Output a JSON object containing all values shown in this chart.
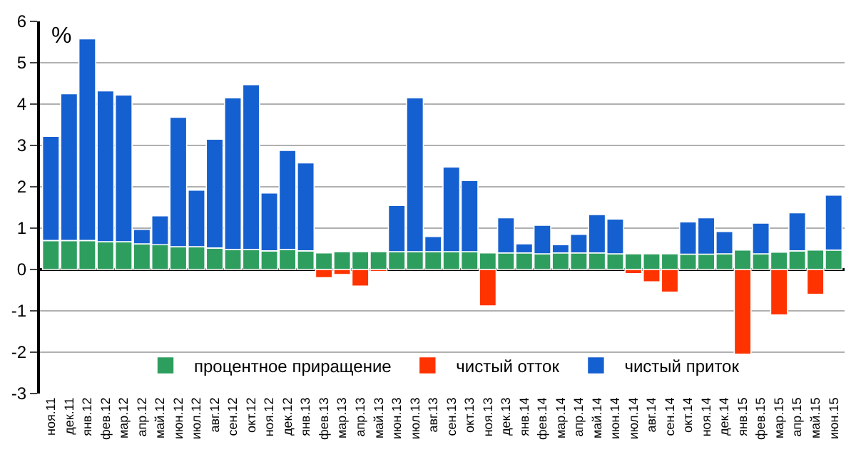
{
  "chart_data": {
    "type": "bar",
    "stacked": true,
    "ylabel": "%",
    "categories": [
      "ноя.11",
      "дек.11",
      "янв.12",
      "фев.12",
      "мар.12",
      "апр.12",
      "май.12",
      "июн.12",
      "июл.12",
      "авг.12",
      "сен.12",
      "окт.12",
      "ноя.12",
      "дек.12",
      "янв.13",
      "фев.13",
      "мар.13",
      "апр.13",
      "май.13",
      "июн.13",
      "июл.13",
      "авг.13",
      "сен.13",
      "окт.13",
      "ноя.13",
      "дек.13",
      "янв.14",
      "фев.14",
      "мар.14",
      "апр.14",
      "май.14",
      "июн.14",
      "июл.14",
      "авг.14",
      "сен.14",
      "окт.14",
      "ноя.14",
      "дек.14",
      "янв.15",
      "фев.15",
      "мар.15",
      "апр.15",
      "май.15",
      "июн.15"
    ],
    "series": [
      {
        "name": "процентное приращение",
        "color": "#2e9e5e",
        "values": [
          0.7,
          0.7,
          0.7,
          0.67,
          0.67,
          0.62,
          0.6,
          0.55,
          0.55,
          0.52,
          0.48,
          0.48,
          0.45,
          0.48,
          0.45,
          0.4,
          0.43,
          0.43,
          0.43,
          0.43,
          0.43,
          0.43,
          0.43,
          0.43,
          0.4,
          0.4,
          0.4,
          0.38,
          0.4,
          0.4,
          0.4,
          0.38,
          0.38,
          0.38,
          0.38,
          0.37,
          0.37,
          0.38,
          0.47,
          0.38,
          0.42,
          0.45,
          0.47,
          0.47
        ]
      },
      {
        "name": "чистый отток",
        "color": "#ff3300",
        "values": [
          null,
          null,
          null,
          null,
          null,
          null,
          null,
          null,
          null,
          null,
          null,
          null,
          null,
          null,
          null,
          -0.2,
          -0.12,
          -0.4,
          -0.05,
          null,
          null,
          null,
          null,
          null,
          -0.88,
          null,
          null,
          null,
          null,
          null,
          null,
          null,
          -0.1,
          -0.3,
          -0.55,
          null,
          null,
          null,
          -2.05,
          null,
          -1.1,
          null,
          -0.6,
          null
        ]
      },
      {
        "name": "чистый приток",
        "color": "#1560d0",
        "values": [
          2.52,
          3.55,
          4.88,
          3.65,
          3.55,
          0.35,
          0.7,
          3.13,
          1.37,
          2.63,
          3.67,
          3.99,
          1.4,
          2.4,
          2.13,
          null,
          null,
          null,
          null,
          1.12,
          3.72,
          0.37,
          2.05,
          1.72,
          null,
          0.85,
          0.22,
          0.69,
          0.2,
          0.45,
          0.93,
          0.84,
          null,
          null,
          null,
          0.78,
          0.88,
          0.54,
          null,
          0.74,
          null,
          0.92,
          null,
          1.33
        ]
      }
    ],
    "ylim": [
      -3,
      6
    ],
    "yticks": [
      -3,
      -2,
      -1,
      0,
      1,
      2,
      3,
      4,
      5,
      6
    ],
    "grid": "y",
    "legend": "bottom"
  }
}
